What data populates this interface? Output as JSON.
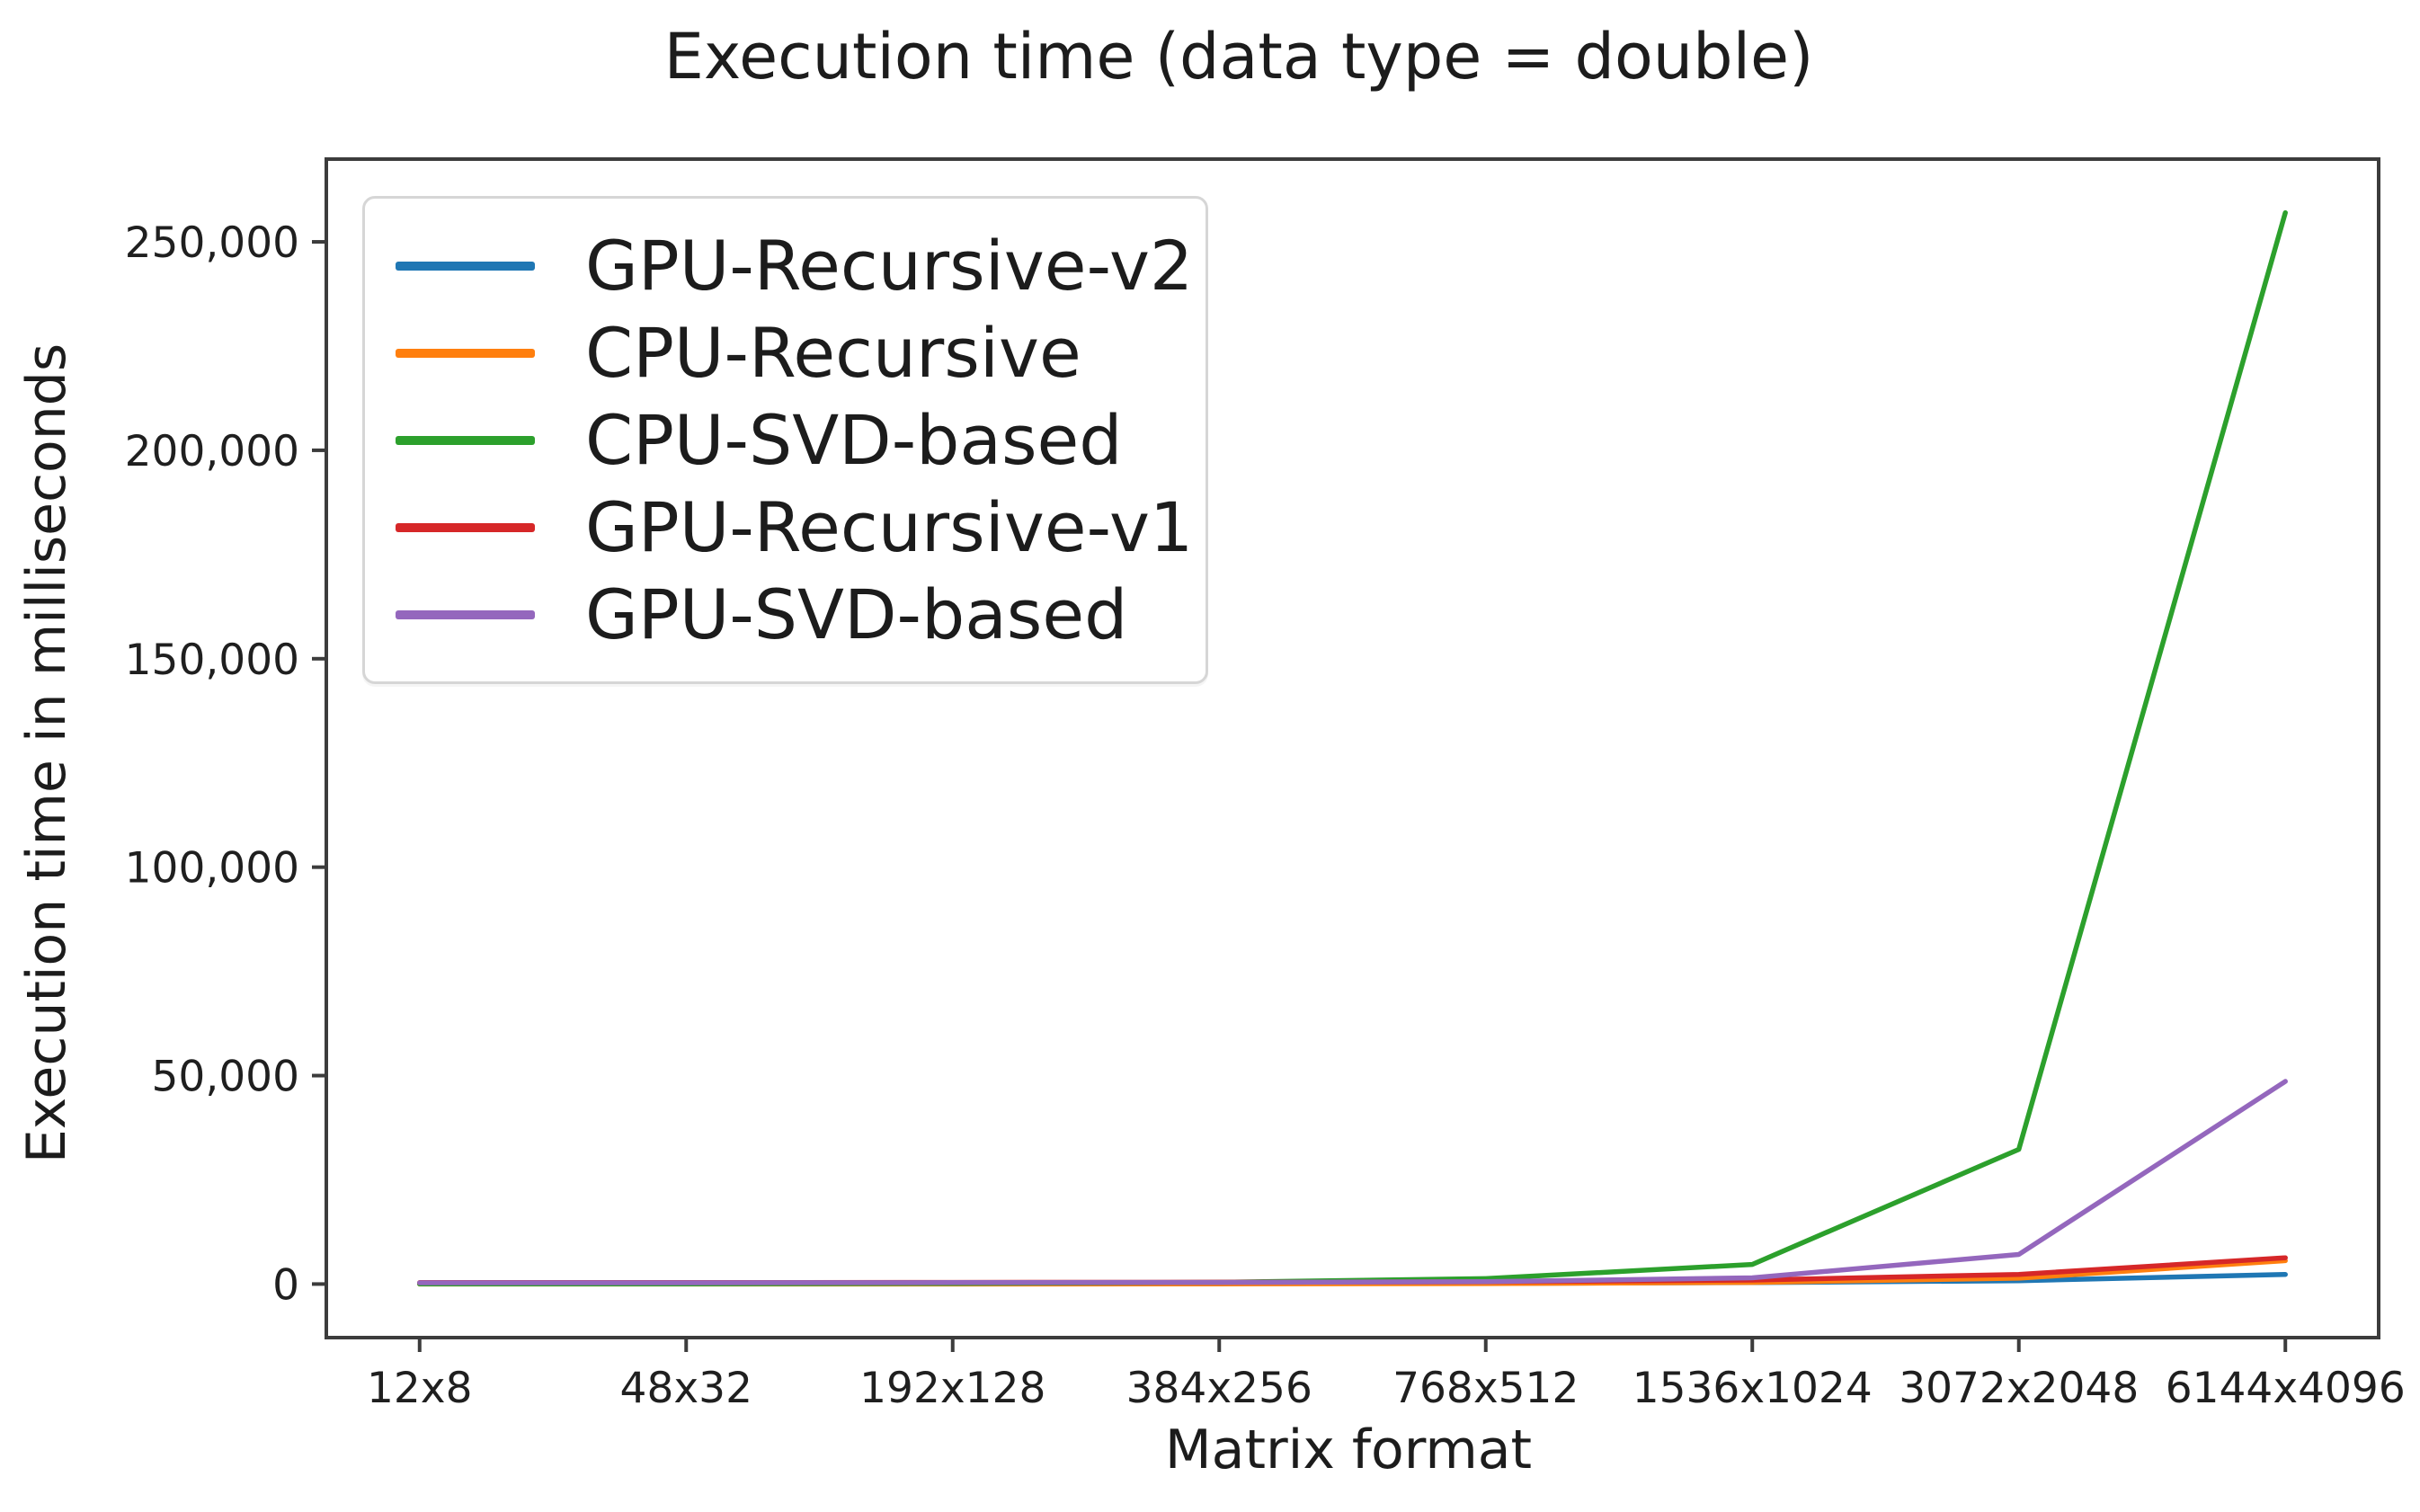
{
  "chart_data": {
    "type": "line",
    "title": "Execution time (data type = double)",
    "xlabel": "Matrix format",
    "ylabel": "Execution time in milliseconds",
    "categories": [
      "12x8",
      "48x32",
      "192x128",
      "384x256",
      "768x512",
      "1536x1024",
      "3072x2048",
      "6144x4096"
    ],
    "series": [
      {
        "name": "GPU-Recursive-v2",
        "color": "#1f77b4",
        "values": [
          60,
          70,
          85,
          110,
          180,
          350,
          800,
          2300
        ]
      },
      {
        "name": "CPU-Recursive",
        "color": "#ff7f0e",
        "values": [
          2,
          5,
          12,
          35,
          100,
          380,
          1400,
          5600
        ]
      },
      {
        "name": "CPU-SVD-based",
        "color": "#2ca02c",
        "values": [
          20,
          50,
          160,
          420,
          1300,
          4700,
          32300,
          257000
        ]
      },
      {
        "name": "GPU-Recursive-v1",
        "color": "#d62728",
        "values": [
          340,
          350,
          380,
          430,
          540,
          950,
          2300,
          6300
        ]
      },
      {
        "name": "GPU-SVD-based",
        "color": "#9467bd",
        "values": [
          300,
          310,
          340,
          400,
          560,
          1500,
          7100,
          48600
        ]
      }
    ],
    "y_ticks": [
      {
        "value": 0,
        "label": "0"
      },
      {
        "value": 50000,
        "label": "50,000"
      },
      {
        "value": 100000,
        "label": "100,000"
      },
      {
        "value": 150000,
        "label": "150,000"
      },
      {
        "value": 200000,
        "label": "200,000"
      },
      {
        "value": 250000,
        "label": "250,000"
      }
    ],
    "ylim": [
      -12850,
      269850
    ],
    "legend_position": "upper left",
    "grid": false
  }
}
